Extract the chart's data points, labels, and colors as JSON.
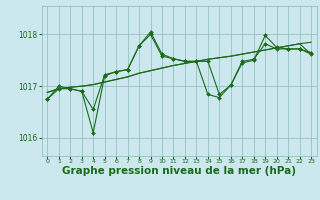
{
  "background_color": "#cce8ee",
  "grid_color": "#88bbbb",
  "line_color": "#1a6b1a",
  "xlabel": "Graphe pression niveau de la mer (hPa)",
  "xlabel_fontsize": 7.5,
  "yticks": [
    1016,
    1017,
    1018
  ],
  "xticks": [
    0,
    1,
    2,
    3,
    4,
    5,
    6,
    7,
    8,
    9,
    10,
    11,
    12,
    13,
    14,
    15,
    16,
    17,
    18,
    19,
    20,
    21,
    22,
    23
  ],
  "ylim": [
    1015.65,
    1018.55
  ],
  "xlim": [
    -0.5,
    23.5
  ],
  "series_jagged1": [
    1016.75,
    1017.0,
    1016.95,
    1016.9,
    1016.55,
    1017.22,
    1017.28,
    1017.32,
    1017.78,
    1018.05,
    1017.62,
    1017.53,
    1017.48,
    1017.48,
    1017.48,
    1016.84,
    1017.02,
    1017.48,
    1017.52,
    1017.82,
    1017.72,
    1017.72,
    1017.72,
    1017.65
  ],
  "series_trend1": [
    1016.88,
    1016.95,
    1016.98,
    1017.0,
    1017.03,
    1017.08,
    1017.13,
    1017.18,
    1017.25,
    1017.3,
    1017.35,
    1017.4,
    1017.44,
    1017.48,
    1017.52,
    1017.55,
    1017.58,
    1017.62,
    1017.66,
    1017.7,
    1017.74,
    1017.78,
    1017.82,
    1017.85
  ],
  "series_trend2": [
    1016.88,
    1016.95,
    1016.98,
    1017.0,
    1017.03,
    1017.08,
    1017.13,
    1017.18,
    1017.25,
    1017.3,
    1017.35,
    1017.4,
    1017.44,
    1017.48,
    1017.52,
    1017.55,
    1017.58,
    1017.62,
    1017.66,
    1017.7,
    1017.74,
    1017.78,
    1017.82,
    1017.62
  ],
  "series_jagged2": [
    1016.75,
    1016.95,
    1016.95,
    1016.9,
    1016.1,
    1017.2,
    1017.28,
    1017.32,
    1017.78,
    1018.0,
    1017.58,
    1017.53,
    1017.48,
    1017.48,
    1016.84,
    1016.78,
    1017.02,
    1017.45,
    1017.5,
    1017.98,
    1017.75,
    1017.72,
    1017.72,
    1017.62
  ]
}
